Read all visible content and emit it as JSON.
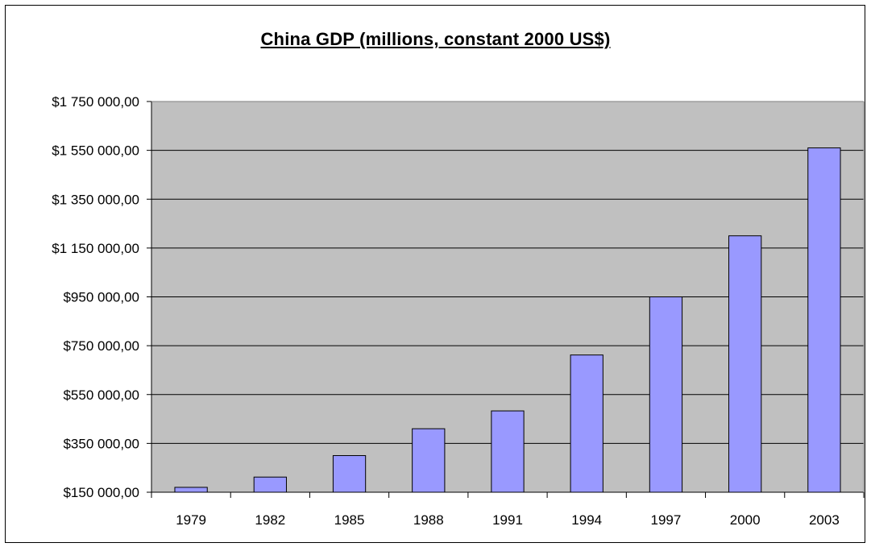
{
  "chart_data": {
    "type": "bar",
    "title": "China GDP (millions, constant 2000 US$)",
    "xlabel": "",
    "ylabel": "",
    "categories": [
      "1979",
      "1982",
      "1985",
      "1988",
      "1991",
      "1994",
      "1997",
      "2000",
      "2003"
    ],
    "values": [
      170000,
      212000,
      300000,
      410000,
      483000,
      712000,
      950000,
      1200000,
      1560000
    ],
    "ylim": [
      150000,
      1750000
    ],
    "yticks": [
      150000,
      350000,
      550000,
      750000,
      950000,
      1150000,
      1350000,
      1550000,
      1750000
    ],
    "ytick_labels": [
      "$150 000,00",
      "$350 000,00",
      "$550 000,00",
      "$750 000,00",
      "$950 000,00",
      "$1 150 000,00",
      "$1 350 000,00",
      "$1 550 000,00",
      "$1 750 000,00"
    ],
    "grid": true,
    "legend": "none",
    "colors": {
      "bar_fill": "#9999ff",
      "plot_background": "#c0c0c0",
      "gridline": "#000000"
    }
  }
}
